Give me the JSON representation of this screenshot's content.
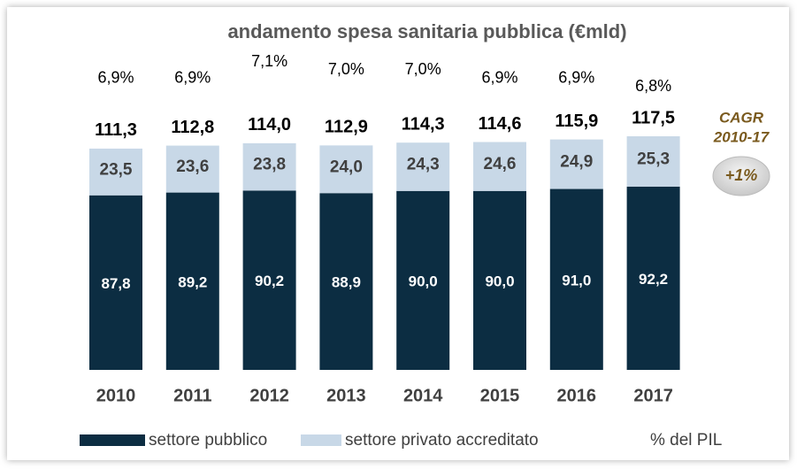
{
  "chart_data": {
    "type": "stacked_bar",
    "title": "andamento spesa sanitaria pubblica (€mld)",
    "categories": [
      "2010",
      "2011",
      "2012",
      "2013",
      "2014",
      "2015",
      "2016",
      "2017"
    ],
    "series": [
      {
        "name": "settore pubblico",
        "color": "#0c2d42",
        "values": [
          87.8,
          89.2,
          90.2,
          88.9,
          90.0,
          90.0,
          91.0,
          92.2
        ],
        "value_labels": [
          "87,8",
          "89,2",
          "90,2",
          "88,9",
          "90,0",
          "90,0",
          "91,0",
          "92,2"
        ]
      },
      {
        "name": "settore privato accreditato",
        "color": "#c8d8e7",
        "values": [
          23.5,
          23.6,
          23.8,
          24.0,
          24.3,
          24.6,
          24.9,
          25.3
        ],
        "value_labels": [
          "23,5",
          "23,6",
          "23,8",
          "24,0",
          "24,3",
          "24,6",
          "24,9",
          "25,3"
        ]
      }
    ],
    "totals": {
      "values": [
        111.3,
        112.8,
        114.0,
        112.9,
        114.3,
        114.6,
        115.9,
        117.5
      ],
      "value_labels": [
        "111,3",
        "112,8",
        "114,0",
        "112,9",
        "114,3",
        "114,6",
        "115,9",
        "117,5"
      ]
    },
    "pil": {
      "name": "% del PIL",
      "values": [
        6.9,
        6.9,
        7.1,
        7.0,
        7.0,
        6.9,
        6.9,
        6.8
      ],
      "value_labels": [
        "6,9%",
        "6,9%",
        "7,1%",
        "7,0%",
        "7,0%",
        "6,9%",
        "6,9%",
        "6,8%"
      ]
    },
    "annotations": [
      "CAGR",
      "2010-17",
      "+1%"
    ]
  }
}
